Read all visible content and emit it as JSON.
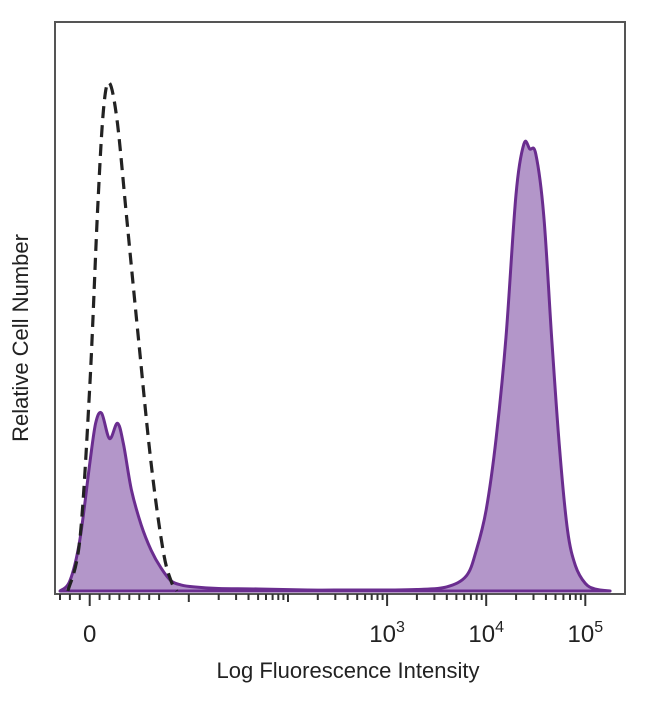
{
  "chart_data": {
    "type": "area",
    "xlabel": "Log Fluorescence Intensity",
    "ylabel": "Relative Cell Number",
    "x_scale": "biexponential",
    "xlim": [
      -0.35,
      5.4
    ],
    "ylim": [
      0,
      1.12
    ],
    "x_tick_labels": [
      {
        "base": "0",
        "exp": ""
      },
      {
        "base": "10",
        "exp": "3"
      },
      {
        "base": "10",
        "exp": "4"
      },
      {
        "base": "10",
        "exp": "5"
      }
    ],
    "x_tick_positions": [
      0.0,
      3.0,
      4.0,
      5.0
    ],
    "grid": false,
    "legend": "none",
    "series": [
      {
        "style": "dashed-outline",
        "color": "#222222",
        "x": [
          -0.22,
          -0.1,
          0.0,
          0.08,
          0.14,
          0.2,
          0.28,
          0.38,
          0.5,
          0.62,
          0.74,
          0.82,
          0.88
        ],
        "y": [
          0.0,
          0.1,
          0.4,
          0.75,
          0.95,
          1.0,
          0.92,
          0.72,
          0.48,
          0.25,
          0.08,
          0.02,
          0.0
        ]
      },
      {
        "style": "filled",
        "color": "#6a2d8f",
        "fill": "#b396c9",
        "x": [
          -0.3,
          -0.2,
          -0.1,
          0.0,
          0.06,
          0.12,
          0.2,
          0.28,
          0.34,
          0.42,
          0.52,
          0.62,
          0.72,
          0.82,
          0.92,
          1.05,
          1.3,
          1.7,
          2.2,
          2.6,
          3.0,
          3.3,
          3.6,
          3.8,
          3.9,
          4.0,
          4.1,
          4.2,
          4.3,
          4.38,
          4.44,
          4.5,
          4.58,
          4.66,
          4.74,
          4.82,
          4.9,
          5.0,
          5.1,
          5.25
        ],
        "y": [
          0.0,
          0.02,
          0.1,
          0.25,
          0.33,
          0.35,
          0.3,
          0.33,
          0.29,
          0.2,
          0.13,
          0.08,
          0.045,
          0.02,
          0.012,
          0.008,
          0.005,
          0.004,
          0.002,
          0.002,
          0.002,
          0.003,
          0.008,
          0.03,
          0.08,
          0.16,
          0.3,
          0.5,
          0.78,
          0.88,
          0.87,
          0.86,
          0.74,
          0.5,
          0.28,
          0.12,
          0.05,
          0.015,
          0.004,
          0.0
        ]
      }
    ]
  }
}
